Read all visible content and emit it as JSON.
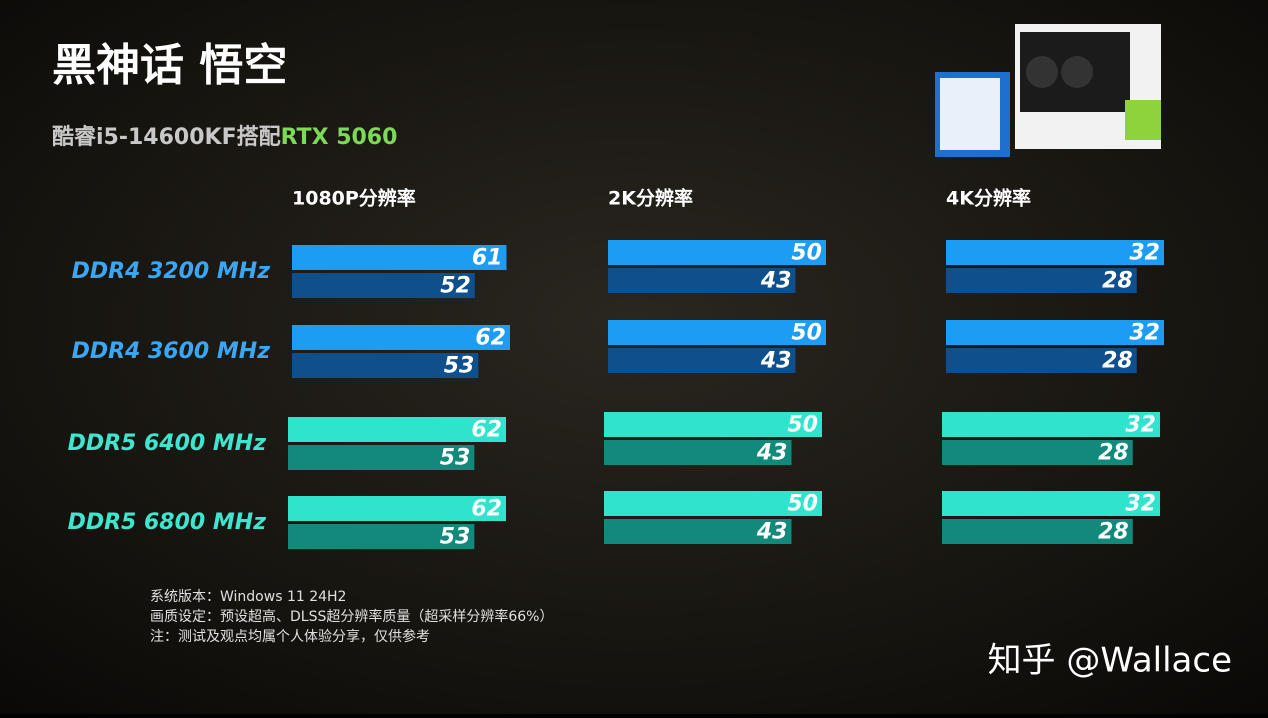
{
  "chart_data": {
    "type": "bar",
    "orientation": "horizontal",
    "title": "黑神话 悟空",
    "subtitle": [
      "酷睿i5-14600KF搭配",
      "RTX 5060"
    ],
    "subtitle_colors": [
      "#c8c8c8",
      "#7ed957"
    ],
    "categories": [
      "DDR4 3200 MHz",
      "DDR4 3600 MHz",
      "DDR5 6400 MHz",
      "DDR5 6800 MHz"
    ],
    "category_colors": [
      "#3aa7f5",
      "#3aa7f5",
      "#3ee6d0",
      "#3ee6d0"
    ],
    "series": [
      {
        "colors": [
          "#1c9cf2",
          "#1c9cf2",
          "#2fe3cc",
          "#2fe3cc"
        ]
      },
      {
        "colors": [
          "#0f4f8c",
          "#0f4f8c",
          "#118a7c",
          "#118a7c"
        ]
      }
    ],
    "panels": [
      {
        "title": "1080P分辨率",
        "xlim": [
          0,
          62
        ],
        "series": [
          {
            "values": [
              61,
              62,
              62,
              62
            ]
          },
          {
            "values": [
              52,
              53,
              53,
              53
            ]
          }
        ]
      },
      {
        "title": "2K分辨率",
        "xlim": [
          0,
          50
        ],
        "series": [
          {
            "values": [
              50,
              50,
              50,
              50
            ]
          },
          {
            "values": [
              43,
              43,
              43,
              43
            ]
          }
        ]
      },
      {
        "title": "4K分辨率",
        "xlim": [
          0,
          32
        ],
        "series": [
          {
            "values": [
              32,
              32,
              32,
              32
            ]
          },
          {
            "values": [
              28,
              28,
              28,
              28
            ]
          }
        ]
      }
    ],
    "notes": [
      "系统版本：Windows 11 24H2",
      "画质设定：预设超高、DLSS超分辨率质量（超采样分辨率66%）",
      "注：测试及观点均属个人体验分享，仅供参考"
    ],
    "watermark": "知乎 @Wallace"
  }
}
